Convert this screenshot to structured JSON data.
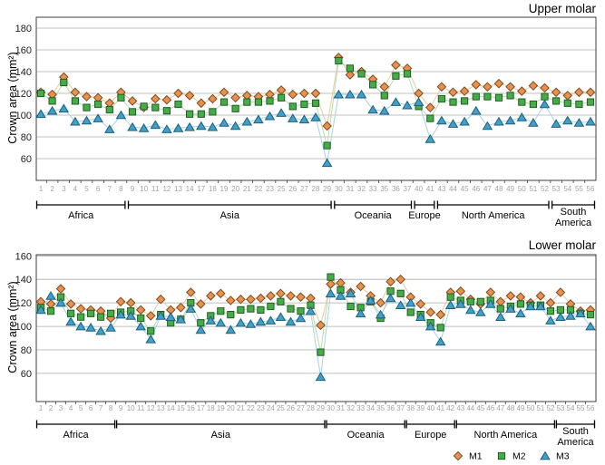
{
  "y_axis_label": "Crown area (mm²)",
  "legend": {
    "labels": [
      "M1",
      "M2",
      "M3"
    ]
  },
  "colors": {
    "grid": "#ababab",
    "frame": "#3f3f3f",
    "x_tick_text": "#a3a3a3",
    "y_tick_text": "#1a1a1a",
    "bracket": "#000000"
  },
  "chart_data": [
    {
      "type": "line",
      "title": "Upper molar",
      "ylabel": "Crown area (mm²)",
      "y_ticks": [
        180,
        160,
        140,
        120,
        100,
        80,
        60
      ],
      "ylim": [
        40,
        190
      ],
      "grid": true,
      "legend_position": "none",
      "x_labels": [
        "1",
        "2",
        "3",
        "4",
        "5",
        "6",
        "7",
        "8",
        "9",
        "10",
        "11",
        "12",
        "13",
        "14",
        "17",
        "18",
        "19",
        "20",
        "21",
        "22",
        "23",
        "25",
        "26",
        "27",
        "28",
        "29",
        "30",
        "31",
        "32",
        "33",
        "35",
        "36",
        "37",
        "40",
        "41",
        "43",
        "44",
        "45",
        "46",
        "47",
        "48",
        "49",
        "50",
        "51",
        "52",
        "53",
        "54",
        "55",
        "56"
      ],
      "regions": [
        {
          "label": "Africa",
          "start": 0,
          "end": 7,
          "two_line": false
        },
        {
          "label": "Asia",
          "start": 8,
          "end": 25,
          "two_line": false
        },
        {
          "label": "Oceania",
          "start": 26,
          "end": 32,
          "two_line": false
        },
        {
          "label": "Europe",
          "start": 33,
          "end": 34,
          "two_line": false
        },
        {
          "label": "North America",
          "start": 35,
          "end": 44,
          "two_line": false
        },
        {
          "label": "South America",
          "start": 45,
          "end": 48,
          "two_line": true
        }
      ],
      "series": [
        {
          "name": "M1",
          "marker": "diamond",
          "fill": "#e8914e",
          "stroke": "#7e4a1d",
          "line_color": "#e9c9a2",
          "values": [
            121,
            119,
            135,
            121,
            117,
            116,
            111,
            121,
            113,
            107,
            115,
            114,
            120,
            118,
            111,
            115,
            121,
            116,
            118,
            117,
            119,
            123,
            119,
            120,
            120,
            90,
            153,
            137,
            140,
            133,
            126,
            146,
            143,
            120,
            107,
            126,
            121,
            122,
            128,
            126,
            129,
            126,
            122,
            127,
            125,
            121,
            118,
            121,
            121
          ]
        },
        {
          "name": "M2",
          "marker": "square",
          "fill": "#45ac49",
          "stroke": "#215e21",
          "line_color": "#b5dcac",
          "values": [
            120,
            113,
            130,
            113,
            107,
            110,
            105,
            116,
            103,
            108,
            107,
            104,
            110,
            101,
            101,
            103,
            112,
            106,
            112,
            112,
            113,
            116,
            108,
            110,
            111,
            72,
            150,
            143,
            138,
            128,
            118,
            136,
            138,
            108,
            97,
            115,
            112,
            113,
            117,
            117,
            116,
            118,
            112,
            110,
            117,
            113,
            111,
            110,
            112
          ]
        },
        {
          "name": "M3",
          "marker": "triangle",
          "fill": "#41a0c8",
          "stroke": "#1d5e7e",
          "line_color": "#a5d3e6",
          "values": [
            101,
            104,
            106,
            94,
            95,
            97,
            87,
            100,
            89,
            88,
            91,
            87,
            88,
            89,
            90,
            89,
            93,
            90,
            94,
            96,
            99,
            102,
            97,
            96,
            98,
            56,
            119,
            119,
            119,
            105,
            104,
            112,
            109,
            112,
            78,
            95,
            92,
            94,
            104,
            90,
            94,
            95,
            98,
            93,
            110,
            92,
            95,
            93,
            94
          ]
        }
      ]
    },
    {
      "type": "line",
      "title": "Lower molar",
      "ylabel": "Crown area (mm²)",
      "y_ticks": [
        160,
        140,
        120,
        100,
        80,
        60
      ],
      "ylim": [
        36,
        161
      ],
      "grid": true,
      "legend_position": "bottom-right",
      "x_labels": [
        "1",
        "2",
        "3",
        "4",
        "5",
        "6",
        "7",
        "8",
        "9",
        "10",
        "11",
        "12",
        "13",
        "14",
        "15",
        "16",
        "17",
        "18",
        "19",
        "20",
        "21",
        "22",
        "23",
        "24",
        "25",
        "26",
        "27",
        "28",
        "29",
        "30",
        "31",
        "32",
        "33",
        "34",
        "35",
        "36",
        "37",
        "38",
        "39",
        "40",
        "41",
        "42",
        "43",
        "44",
        "45",
        "46",
        "47",
        "48",
        "49",
        "50",
        "51",
        "52",
        "53",
        "54",
        "55",
        "56"
      ],
      "regions": [
        {
          "label": "Africa",
          "start": 0,
          "end": 7,
          "two_line": false
        },
        {
          "label": "Asia",
          "start": 8,
          "end": 28,
          "two_line": false
        },
        {
          "label": "Oceania",
          "start": 29,
          "end": 36,
          "two_line": false
        },
        {
          "label": "Europe",
          "start": 37,
          "end": 41,
          "two_line": false
        },
        {
          "label": "North America",
          "start": 42,
          "end": 51,
          "two_line": false
        },
        {
          "label": "South America",
          "start": 52,
          "end": 55,
          "two_line": true
        }
      ],
      "series": [
        {
          "name": "M1",
          "marker": "diamond",
          "fill": "#e8914e",
          "stroke": "#7e4a1d",
          "line_color": "#e9c9a2",
          "values": [
            121,
            119,
            132,
            119,
            115,
            114,
            113,
            107,
            121,
            120,
            114,
            109,
            123,
            114,
            116,
            129,
            119,
            126,
            128,
            122,
            123,
            123,
            124,
            126,
            128,
            126,
            125,
            124,
            101,
            136,
            137,
            129,
            134,
            126,
            120,
            138,
            140,
            125,
            119,
            112,
            110,
            129,
            130,
            123,
            119,
            129,
            121,
            126,
            125,
            120,
            126,
            120,
            129,
            119,
            113,
            114
          ]
        },
        {
          "name": "M2",
          "marker": "square",
          "fill": "#45ac49",
          "stroke": "#215e21",
          "line_color": "#b5dcac",
          "values": [
            116,
            113,
            125,
            111,
            108,
            111,
            108,
            111,
            112,
            113,
            107,
            96,
            110,
            103,
            106,
            120,
            103,
            109,
            113,
            110,
            114,
            115,
            114,
            117,
            121,
            115,
            113,
            118,
            78,
            142,
            131,
            117,
            116,
            121,
            107,
            130,
            128,
            112,
            110,
            103,
            99,
            125,
            122,
            121,
            121,
            122,
            115,
            117,
            119,
            118,
            118,
            113,
            114,
            114,
            111,
            110
          ]
        },
        {
          "name": "M3",
          "marker": "triangle",
          "fill": "#41a0c8",
          "stroke": "#1d5e7e",
          "line_color": "#a5d3e6",
          "values": [
            114,
            126,
            120,
            104,
            100,
            99,
            96,
            99,
            110,
            109,
            100,
            89,
            109,
            108,
            106,
            115,
            97,
            105,
            103,
            97,
            103,
            102,
            104,
            105,
            108,
            104,
            107,
            113,
            57,
            128,
            126,
            128,
            111,
            122,
            110,
            124,
            118,
            120,
            108,
            100,
            87,
            118,
            119,
            114,
            112,
            119,
            108,
            115,
            111,
            117,
            117,
            105,
            108,
            109,
            111,
            100
          ]
        }
      ]
    }
  ]
}
